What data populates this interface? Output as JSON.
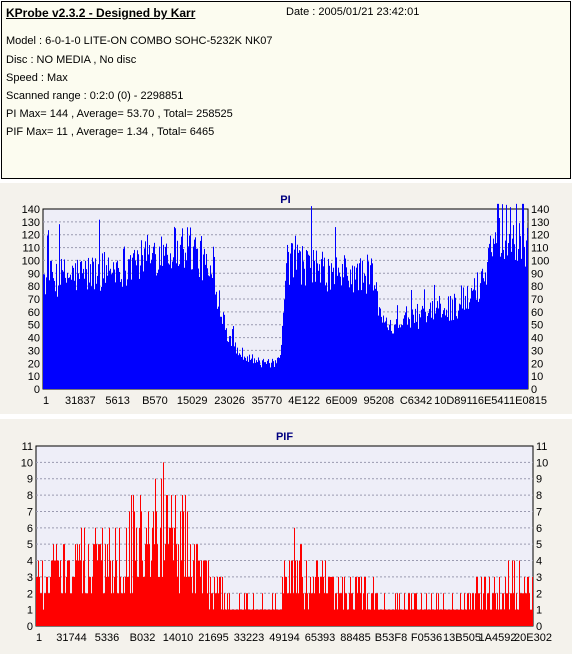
{
  "header": {
    "title": "KProbe v2.3.2 - Designed by Karr",
    "date_text": "Date : 2005/01/21 23:42:01",
    "lines": [
      "Model : 6-0-1-0 LITE-ON COMBO SOHC-5232K NK07",
      "Disc : NO MEDIA , No disc",
      "Speed : Max",
      "Scanned range : 0:2:0 (0) - 2298851",
      "PI Max= 144 , Average= 53.70 , Total= 258525",
      "PIF Max= 11 , Average= 1.34 , Total= 6465"
    ]
  },
  "chart_data": [
    {
      "type": "bar",
      "title": "PI",
      "color": "#0000ff",
      "ylim": [
        0,
        140
      ],
      "yticks": [
        0,
        10,
        20,
        30,
        40,
        50,
        60,
        70,
        80,
        90,
        100,
        110,
        120,
        130,
        140
      ],
      "xtick_labels": [
        "1",
        "31837",
        "5613",
        "B570",
        "15029",
        "23026",
        "35770",
        "4E122",
        "6E009",
        "95208",
        "C6342",
        "10D891",
        "16E541",
        "1E0815"
      ],
      "grid": true,
      "profile_x": [
        0,
        0.05,
        0.1,
        0.15,
        0.2,
        0.25,
        0.3,
        0.33,
        0.36,
        0.38,
        0.4,
        0.45,
        0.48,
        0.49,
        0.5,
        0.52,
        0.55,
        0.6,
        0.62,
        0.65,
        0.68,
        0.7,
        0.75,
        0.8,
        0.85,
        0.88,
        0.9,
        0.93,
        0.96,
        1.0
      ],
      "values": [
        85,
        88,
        90,
        95,
        100,
        110,
        112,
        100,
        75,
        45,
        30,
        20,
        20,
        22,
        95,
        100,
        95,
        88,
        90,
        88,
        90,
        50,
        55,
        58,
        65,
        70,
        80,
        115,
        125,
        110
      ],
      "max": 144
    },
    {
      "type": "bar",
      "title": "PIF",
      "color": "#ff0000",
      "ylim": [
        0,
        11
      ],
      "yticks": [
        0,
        1,
        2,
        3,
        4,
        5,
        6,
        7,
        8,
        9,
        10,
        11
      ],
      "xtick_labels": [
        "1",
        "31744",
        "5336",
        "B032",
        "14010",
        "21695",
        "33223",
        "49194",
        "65393",
        "88485",
        "B53F8",
        "F0536",
        "13B505",
        "1A4592",
        "20E302"
      ],
      "grid": true,
      "profile_x": [
        0,
        0.05,
        0.1,
        0.15,
        0.2,
        0.25,
        0.3,
        0.33,
        0.36,
        0.38,
        0.4,
        0.45,
        0.48,
        0.49,
        0.5,
        0.52,
        0.55,
        0.6,
        0.62,
        0.65,
        0.68,
        0.7,
        0.75,
        0.8,
        0.85,
        0.88,
        0.9,
        0.93,
        0.96,
        1.0
      ],
      "values": [
        2.5,
        3,
        3.5,
        4,
        5,
        6,
        5,
        3,
        2,
        1.5,
        1,
        1,
        1,
        1,
        3,
        3,
        2.5,
        2,
        2,
        2,
        1.5,
        1,
        1,
        1,
        1,
        1.5,
        2,
        2,
        2.5,
        2
      ],
      "max": 11
    }
  ]
}
